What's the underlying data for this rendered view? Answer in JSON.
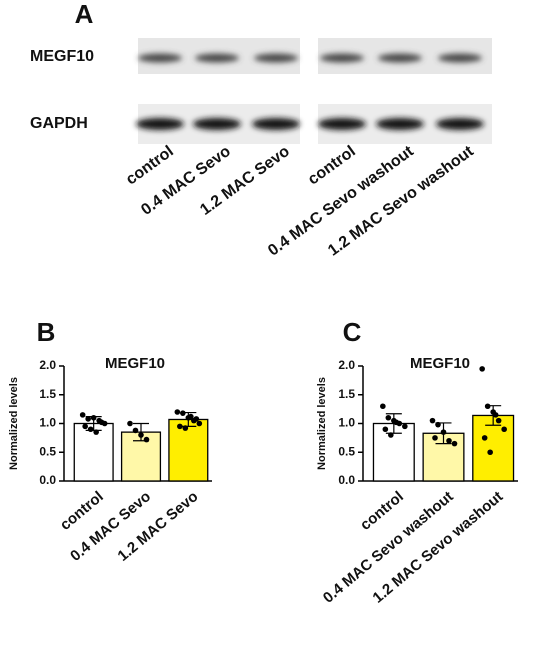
{
  "panel_labels": [
    "A",
    "B",
    "C"
  ],
  "blot": {
    "rows": [
      "MEGF10",
      "GAPDH"
    ],
    "lanes": [
      "control",
      "0.4 MAC Sevo",
      "1.2 MAC Sevo",
      "control",
      "0.4 MAC Sevo  washout",
      "1.2 MAC Sevo  washout"
    ]
  },
  "chart_data": [
    {
      "type": "bar",
      "title": "MEGF10",
      "y_label": "Normalized  levels",
      "categories": [
        "control",
        "0.4 MAC Sevo",
        "1.2 MAC Sevo"
      ],
      "values": [
        1.0,
        0.85,
        1.07
      ],
      "errors": [
        0.12,
        0.15,
        0.12
      ],
      "colors": [
        "#ffffff",
        "#fff8a8",
        "#ffee00"
      ],
      "points": [
        [
          1.15,
          1.08,
          1.1,
          1.05,
          1.0,
          0.95,
          0.9,
          0.85,
          1.02
        ],
        [
          1.0,
          0.88,
          0.8,
          0.72
        ],
        [
          1.2,
          1.18,
          1.1,
          1.05,
          1.0,
          0.95,
          0.92,
          1.12,
          1.08
        ]
      ],
      "ylim": [
        0,
        2.0
      ],
      "yticks": [
        {
          "value": 0,
          "label": "0.0"
        },
        {
          "value": 0.5,
          "label": "0.5"
        },
        {
          "value": 1.0,
          "label": "1.0"
        },
        {
          "value": 1.5,
          "label": "1.5"
        },
        {
          "value": 2.0,
          "label": "2.0"
        }
      ]
    },
    {
      "type": "bar",
      "title": "MEGF10",
      "y_label": "Normalized  levels",
      "categories": [
        "control",
        "0.4 MAC Sevo  washout",
        "1.2 MAC Sevo  washout"
      ],
      "values": [
        1.0,
        0.83,
        1.14
      ],
      "errors": [
        0.17,
        0.18,
        0.17
      ],
      "colors": [
        "#ffffff",
        "#fff8a8",
        "#ffee00"
      ],
      "points": [
        [
          1.3,
          1.1,
          1.05,
          1.0,
          0.95,
          0.9,
          0.8,
          1.02
        ],
        [
          1.05,
          0.98,
          0.85,
          0.7,
          0.65,
          0.75
        ],
        [
          1.95,
          1.3,
          1.2,
          1.05,
          0.9,
          0.75,
          0.5,
          1.15
        ]
      ],
      "ylim": [
        0,
        2.0
      ],
      "yticks": [
        {
          "value": 0,
          "label": "0.0"
        },
        {
          "value": 0.5,
          "label": "0.5"
        },
        {
          "value": 1.0,
          "label": "1.0"
        },
        {
          "value": 1.5,
          "label": "1.5"
        },
        {
          "value": 2.0,
          "label": "2.0"
        }
      ]
    }
  ]
}
